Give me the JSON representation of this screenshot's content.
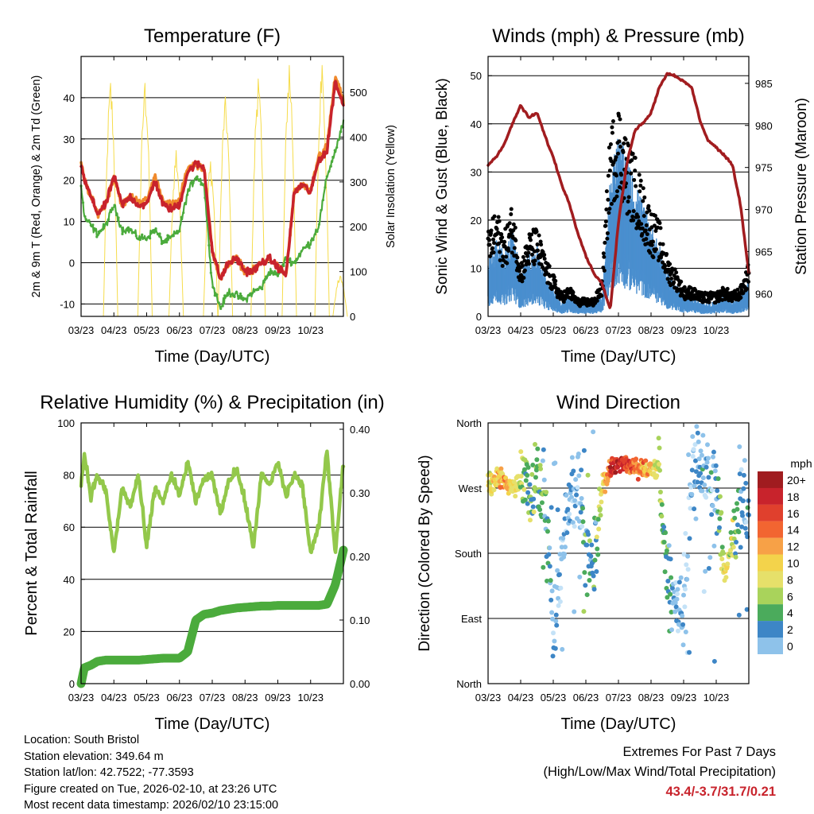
{
  "x_ticks": [
    "03/23",
    "04/23",
    "05/23",
    "06/23",
    "07/23",
    "08/23",
    "09/23",
    "10/23"
  ],
  "x_label": "Time (Day/UTC)",
  "colors": {
    "t2m": "#c8232c",
    "t9m": "#f08a2c",
    "td": "#4bab3c",
    "solar": "#f6dc4b",
    "wind": "#4a8fcf",
    "gust": "#000000",
    "pressure": "#a11c1f",
    "rh": "#93c84b",
    "precip": "#4bab3c"
  },
  "chart_data": [
    {
      "type": "line",
      "title": "Temperature (F)",
      "ylabel": "2m & 9m T (Red, Orange) & 2m Td (Green)",
      "ylabel_right": "Solar Insolation (Yellow)",
      "ylim": [
        -13,
        50
      ],
      "ylim_right": [
        0,
        580
      ],
      "yticks": [
        "-10",
        "0",
        "10",
        "20",
        "30",
        "40"
      ],
      "yticks_right": [
        "0",
        "100",
        "200",
        "300",
        "400",
        "500"
      ],
      "x": [
        0,
        0.1,
        0.3,
        0.5,
        0.75,
        1,
        1.25,
        1.5,
        1.75,
        2,
        2.25,
        2.5,
        2.75,
        3,
        3.25,
        3.5,
        3.75,
        4,
        4.25,
        4.5,
        4.75,
        5,
        5.25,
        5.5,
        5.75,
        6,
        6.25,
        6.5,
        6.75,
        7,
        7.25,
        7.5,
        7.75,
        8
      ],
      "series": [
        {
          "name": "2m T",
          "values": [
            24,
            20,
            16,
            12,
            14,
            21,
            14,
            16,
            14,
            14,
            20,
            14,
            13,
            14,
            22,
            24,
            23,
            3,
            -4,
            0,
            1,
            -2,
            -2,
            0,
            1,
            -1,
            -3,
            17,
            19,
            17,
            25,
            27,
            44,
            38
          ]
        },
        {
          "name": "9m T",
          "values": [
            24,
            20,
            16,
            12,
            14,
            21,
            14,
            16,
            15,
            15,
            21,
            15,
            14,
            15,
            23,
            24,
            23,
            3,
            -4,
            0,
            1,
            -2,
            -2,
            0,
            1,
            -1,
            -3,
            17,
            19,
            17,
            26,
            28,
            45,
            39
          ]
        },
        {
          "name": "2m Td",
          "values": [
            19,
            11,
            9,
            7,
            9,
            14,
            8,
            8,
            6,
            6,
            8,
            5,
            6,
            8,
            17,
            21,
            19,
            -5,
            -11,
            -7,
            -8,
            -9,
            -7,
            -6,
            -2,
            -3,
            1,
            0,
            3,
            5,
            9,
            21,
            27,
            34
          ]
        },
        {
          "name": "Solar Insolation",
          "peaks": [
            [
              0.9,
              520
            ],
            [
              1.95,
              520
            ],
            [
              2.9,
              370
            ],
            [
              3.95,
              345
            ],
            [
              4.4,
              490
            ],
            [
              5.4,
              530
            ],
            [
              6.35,
              560
            ],
            [
              7.35,
              560
            ],
            [
              7.9,
              90
            ]
          ]
        }
      ]
    },
    {
      "type": "scatter",
      "title": "Winds (mph) & Pressure (mb)",
      "ylabel": "Sonic Wind & Gust (Blue, Black)",
      "ylabel_right": "Station Pressure (Maroon)",
      "ylim": [
        0,
        54
      ],
      "ylim_right": [
        957.3,
        988.2
      ],
      "yticks": [
        "0",
        "10",
        "20",
        "30",
        "40",
        "50"
      ],
      "yticks_right": [
        "960",
        "965",
        "970",
        "975",
        "980",
        "985"
      ],
      "x": [
        0,
        0.25,
        0.5,
        0.75,
        1,
        1.25,
        1.5,
        1.75,
        2,
        2.25,
        2.5,
        2.75,
        3,
        3.25,
        3.5,
        3.75,
        4,
        4.25,
        4.5,
        4.75,
        5,
        5.25,
        5.5,
        5.75,
        6,
        6.25,
        6.5,
        6.75,
        7,
        7.25,
        7.5,
        7.75,
        8
      ],
      "series": [
        {
          "name": "Sonic Wind",
          "values": [
            8,
            11,
            9,
            13,
            6,
            9,
            10,
            6,
            4,
            2,
            3,
            2,
            2,
            2,
            3,
            20,
            26,
            22,
            19,
            16,
            13,
            10,
            6,
            5,
            3,
            3,
            2,
            2,
            2,
            3,
            2,
            3,
            5
          ]
        },
        {
          "name": "Gust",
          "values": [
            14,
            18,
            14,
            19,
            9,
            14,
            15,
            10,
            7,
            4,
            5,
            3,
            3,
            3,
            6,
            32,
            36,
            30,
            27,
            22,
            18,
            16,
            10,
            8,
            5,
            5,
            4,
            4,
            4,
            5,
            4,
            5,
            9
          ]
        },
        {
          "name": "Station Pressure",
          "values": [
            975.3,
            976.3,
            977.8,
            980.2,
            982.4,
            980.9,
            981.5,
            978.7,
            976.2,
            973.1,
            970.6,
            967.3,
            964.5,
            962.4,
            961.2,
            958.1,
            968.5,
            975.3,
            979.4,
            980.3,
            981.5,
            984.5,
            986.2,
            985.9,
            985.2,
            984.5,
            980.6,
            978.2,
            977.4,
            976.4,
            975.3,
            970.4,
            962.5
          ]
        }
      ]
    },
    {
      "type": "line",
      "title": "Relative Humidity (%) & Precipitation (in)",
      "ylabel": "Percent & Total Rainfall",
      "ylim": [
        0,
        100
      ],
      "ylim_right": [
        0,
        0.41
      ],
      "yticks": [
        "0",
        "20",
        "40",
        "60",
        "80",
        "100"
      ],
      "yticks_right": [
        "0.00",
        "0.10",
        "0.20",
        "0.30",
        "0.40"
      ],
      "x": [
        0,
        0.1,
        0.3,
        0.5,
        0.75,
        1,
        1.25,
        1.5,
        1.75,
        2,
        2.25,
        2.5,
        2.75,
        3,
        3.25,
        3.5,
        3.75,
        4,
        4.25,
        4.5,
        4.75,
        5,
        5.25,
        5.5,
        5.75,
        6,
        6.25,
        6.5,
        6.75,
        7,
        7.25,
        7.5,
        7.75,
        8
      ],
      "series": [
        {
          "name": "Relative Humidity",
          "values": [
            76,
            88,
            72,
            80,
            74,
            50,
            75,
            68,
            80,
            52,
            75,
            70,
            80,
            72,
            85,
            70,
            78,
            80,
            65,
            78,
            82,
            70,
            52,
            80,
            76,
            85,
            72,
            80,
            76,
            50,
            60,
            90,
            50,
            85
          ]
        },
        {
          "name": "Total Precipitation",
          "values": [
            0,
            0.025,
            0.029,
            0.035,
            0.037,
            0.037,
            0.037,
            0.037,
            0.037,
            0.038,
            0.039,
            0.04,
            0.04,
            0.04,
            0.05,
            0.1,
            0.109,
            0.111,
            0.115,
            0.117,
            0.119,
            0.12,
            0.121,
            0.122,
            0.122,
            0.123,
            0.123,
            0.123,
            0.123,
            0.123,
            0.123,
            0.125,
            0.155,
            0.21
          ]
        }
      ]
    },
    {
      "type": "scatter",
      "title": "Wind Direction",
      "ylabel": "Direction (Colored By Speed)",
      "ylim": [
        0,
        360
      ],
      "yticks": [
        "North",
        "East",
        "South",
        "West",
        "North"
      ],
      "x": [
        0,
        0.25,
        0.5,
        0.75,
        1,
        1.25,
        1.5,
        1.75,
        2,
        2.25,
        2.5,
        2.75,
        3,
        3.25,
        3.5,
        3.75,
        4,
        4.25,
        4.5,
        4.75,
        5,
        5.25,
        5.5,
        5.75,
        6,
        6.25,
        6.5,
        6.75,
        7,
        7.25,
        7.5,
        7.75,
        8
      ],
      "series": [
        {
          "name": "Direction",
          "values": [
            275,
            285,
            280,
            270,
            276,
            272,
            268,
            262,
            80,
            150,
            260,
            280,
            180,
            150,
            270,
            300,
            305,
            300,
            302,
            298,
            300,
            290,
            150,
            110,
            90,
            290,
            300,
            290,
            260,
            150,
            190,
            250,
            240
          ]
        },
        {
          "name": "Speed",
          "values": [
            10,
            12,
            14,
            11,
            9,
            6,
            7,
            5,
            3,
            2,
            3,
            2,
            6,
            4,
            10,
            18,
            20,
            18,
            16,
            14,
            12,
            8,
            5,
            3,
            2,
            2,
            3,
            2,
            3,
            12,
            8,
            3,
            4
          ]
        }
      ],
      "legend_title": "mph",
      "legend_labels": [
        "20+",
        "18",
        "16",
        "14",
        "12",
        "10",
        "8",
        "6",
        "4",
        "2",
        "0"
      ],
      "legend_colors": [
        "#a01c1f",
        "#c8232c",
        "#e0402d",
        "#f26531",
        "#f7a147",
        "#f3d34b",
        "#e6e06a",
        "#a9d35b",
        "#4bab5c",
        "#3d86c6",
        "#8ec2ea",
        "#c4e2f7"
      ]
    }
  ],
  "footer": {
    "location": "Location: South Bristol",
    "elevation": "Station elevation: 349.64 m",
    "latlon": "Station lat/lon: 42.7522; -77.3593",
    "created": "Figure created on Tue, 2026-02-10, at 23:26 UTC",
    "recent": "Most recent data timestamp: 2026/02/10 23:15:00",
    "extremes_title": "Extremes For Past 7 Days",
    "extremes_sub": "(High/Low/Max Wind/Total Precipitation)",
    "extremes_values": "43.4/-3.7/31.7/0.21"
  }
}
